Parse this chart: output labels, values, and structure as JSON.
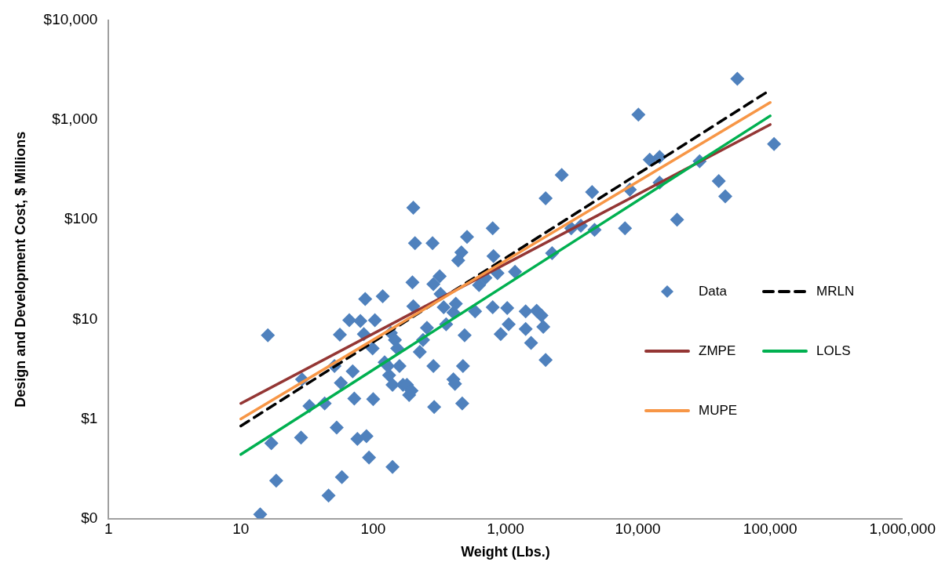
{
  "chart_data": {
    "type": "scatter",
    "xlabel": "Weight (Lbs.)",
    "ylabel": "Design and Development Cost, $ Millions",
    "log": "xy",
    "grid": false,
    "legend": "right",
    "marker": "diamond",
    "xlim": [
      1,
      1000000
    ],
    "xticks": [
      1,
      10,
      100,
      {
        "value": 1000,
        "label": "1,000"
      },
      {
        "value": 10000,
        "label": "10,000"
      },
      {
        "value": 100000,
        "label": "100,000"
      },
      {
        "value": 1000000,
        "label": "1,000,000"
      }
    ],
    "ylim": [
      0.1,
      10000
    ],
    "yticks": [
      {
        "value": 0.1,
        "label": "$0"
      },
      {
        "value": 1,
        "label": "$1"
      },
      {
        "value": 10,
        "label": "$10"
      },
      {
        "value": 100,
        "label": "$100"
      },
      {
        "value": 1000,
        "label": "$1,000"
      },
      {
        "value": 10000,
        "label": "$10,000"
      }
    ],
    "series": [
      {
        "name": "Data",
        "color": "#4f81bd",
        "x": [
          14,
          16,
          17,
          18.5,
          29,
          28.5,
          33,
          46,
          43,
          51,
          56,
          53,
          58,
          57,
          66,
          70,
          72,
          76,
          80,
          85,
          89,
          93,
          87,
          99,
          100,
          103,
          118,
          122,
          132,
          140,
          140,
          136,
          129,
          146,
          152,
          158,
          168,
          180,
          187,
          195,
          201,
          207,
          198,
          201,
          225,
          238,
          255,
          281,
          285,
          285,
          289,
          318,
          323,
          341,
          356,
          404,
          421,
          404,
          415,
          439,
          464,
          477,
          491,
          471,
          512,
          589,
          631,
          705,
          800,
          811,
          870,
          920,
          800,
          1030,
          1057,
          1180,
          1420,
          1420,
          1560,
          1720,
          1870,
          1930,
          2010,
          2010,
          2250,
          2660,
          3140,
          3710,
          4710,
          4510,
          8000,
          8700,
          10100,
          12300,
          14600,
          14600,
          19800,
          29300,
          40900,
          45800,
          56500,
          107000
        ],
        "values": [
          0.11,
          6.9,
          0.57,
          0.24,
          2.5,
          0.65,
          1.35,
          0.17,
          1.43,
          3.4,
          7.0,
          0.82,
          0.26,
          2.3,
          9.8,
          3.0,
          1.6,
          0.63,
          9.6,
          7.1,
          0.67,
          0.41,
          16,
          5.1,
          1.58,
          9.8,
          17,
          3.7,
          2.75,
          2.2,
          0.33,
          7.3,
          3.4,
          6.2,
          5.1,
          3.4,
          2.2,
          2.2,
          1.74,
          1.92,
          132,
          58,
          23.5,
          13.5,
          4.7,
          6.2,
          8.2,
          58,
          22.5,
          3.4,
          1.32,
          27,
          18,
          13.2,
          8.9,
          11.7,
          14.3,
          2.5,
          2.25,
          39,
          47,
          3.4,
          6.9,
          1.43,
          67,
          12,
          22,
          26,
          82,
          43,
          29,
          7.1,
          13.2,
          13,
          8.9,
          30,
          12,
          8.0,
          5.8,
          12.2,
          10.9,
          8.4,
          3.9,
          164,
          46,
          281,
          82,
          87,
          79,
          189,
          82,
          200,
          1130,
          400,
          426,
          235,
          100,
          385,
          244,
          171,
          2590,
          574
        ]
      },
      {
        "name": "MRLN",
        "color": "#000000",
        "type": "line",
        "line_style": "dashed",
        "marker": "none",
        "x": [
          10,
          100000
        ],
        "values": [
          0.85,
          2000
        ]
      },
      {
        "name": "ZMPE",
        "color": "#943634",
        "type": "line",
        "line_style": "solid",
        "marker": "none",
        "x": [
          10,
          100000
        ],
        "values": [
          1.43,
          900
        ]
      },
      {
        "name": "LOLS",
        "color": "#00b050",
        "type": "line",
        "line_style": "solid",
        "marker": "none",
        "x": [
          10,
          100000
        ],
        "values": [
          0.44,
          1100
        ]
      },
      {
        "name": "MUPE",
        "color": "#f79646",
        "type": "line",
        "line_style": "solid",
        "marker": "none",
        "x": [
          10,
          100000
        ],
        "values": [
          1.0,
          1500
        ]
      }
    ]
  }
}
